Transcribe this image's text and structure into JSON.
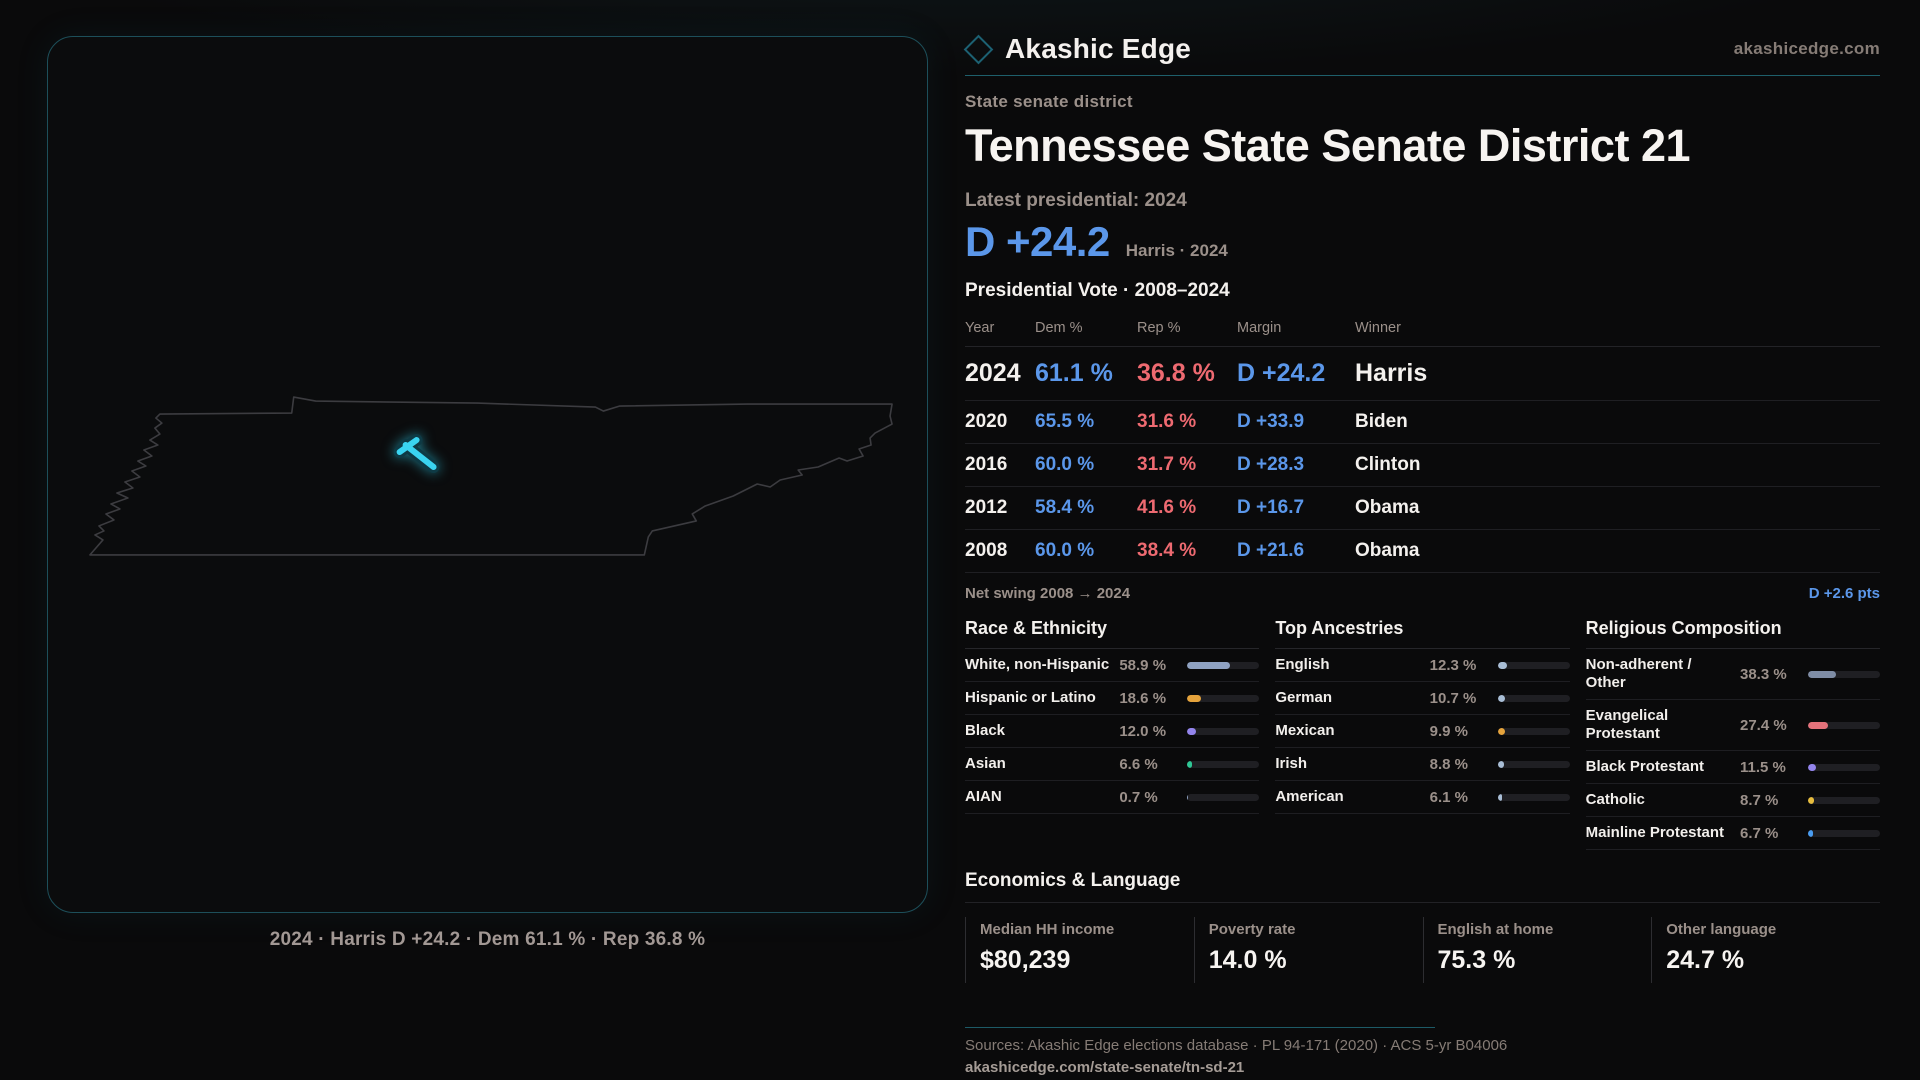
{
  "brand": {
    "name": "Akashic Edge",
    "site": "akashicedge.com"
  },
  "page": {
    "kicker": "State senate district",
    "title": "Tennessee State Senate District 21"
  },
  "headline": {
    "label": "Latest presidential: 2024",
    "margin": "D +24.2",
    "sub": "Harris · 2024"
  },
  "map": {
    "caption": "2024 · Harris D +24.2 · Dem 61.1 % · Rep 36.8 %"
  },
  "vote_table": {
    "title": "Presidential Vote · 2008–2024",
    "columns": [
      "Year",
      "Dem %",
      "Rep %",
      "Margin",
      "Winner"
    ],
    "rows": [
      {
        "year": "2024",
        "dem": "61.1 %",
        "rep": "36.8 %",
        "margin": "D +24.2",
        "winner": "Harris",
        "emphasis": true
      },
      {
        "year": "2020",
        "dem": "65.5 %",
        "rep": "31.6 %",
        "margin": "D +33.9",
        "winner": "Biden",
        "emphasis": false
      },
      {
        "year": "2016",
        "dem": "60.0 %",
        "rep": "31.7 %",
        "margin": "D +28.3",
        "winner": "Clinton",
        "emphasis": false
      },
      {
        "year": "2012",
        "dem": "58.4 %",
        "rep": "41.6 %",
        "margin": "D +16.7",
        "winner": "Obama",
        "emphasis": false
      },
      {
        "year": "2008",
        "dem": "60.0 %",
        "rep": "38.4 %",
        "margin": "D +21.6",
        "winner": "Obama",
        "emphasis": false
      }
    ]
  },
  "net_swing": {
    "label": "Net swing 2008 → 2024",
    "value": "D +2.6 pts"
  },
  "demographics": [
    {
      "id": "race",
      "title": "Race & Ethnicity",
      "rows": [
        {
          "label": "White, non-Hispanic",
          "value": "58.9 %",
          "pct": 58.9,
          "color": "#8fa2c2"
        },
        {
          "label": "Hispanic or Latino",
          "value": "18.6 %",
          "pct": 18.6,
          "color": "#e5a33c"
        },
        {
          "label": "Black",
          "value": "12.0 %",
          "pct": 12.0,
          "color": "#9384ec"
        },
        {
          "label": "Asian",
          "value": "6.6 %",
          "pct": 6.6,
          "color": "#2fc795"
        },
        {
          "label": "AIAN",
          "value": "0.7 %",
          "pct": 0.7,
          "color": "#8fa2c2"
        }
      ]
    },
    {
      "id": "ancestries",
      "title": "Top Ancestries",
      "rows": [
        {
          "label": "English",
          "value": "12.3 %",
          "pct": 12.3,
          "color": "#a9bed6"
        },
        {
          "label": "German",
          "value": "10.7 %",
          "pct": 10.7,
          "color": "#a9bed6"
        },
        {
          "label": "Mexican",
          "value": "9.9 %",
          "pct": 9.9,
          "color": "#e5a33c"
        },
        {
          "label": "Irish",
          "value": "8.8 %",
          "pct": 8.8,
          "color": "#a9bed6"
        },
        {
          "label": "American",
          "value": "6.1 %",
          "pct": 6.1,
          "color": "#a9bed6"
        }
      ]
    },
    {
      "id": "religion",
      "title": "Religious Composition",
      "rows": [
        {
          "label": "Non-adherent / Other",
          "value": "38.3 %",
          "pct": 38.3,
          "color": "#7f8da6"
        },
        {
          "label": "Evangelical Protestant",
          "value": "27.4 %",
          "pct": 27.4,
          "color": "#e4727b"
        },
        {
          "label": "Black Protestant",
          "value": "11.5 %",
          "pct": 11.5,
          "color": "#9384ec"
        },
        {
          "label": "Catholic",
          "value": "8.7 %",
          "pct": 8.7,
          "color": "#e7bd3e"
        },
        {
          "label": "Mainline Protestant",
          "value": "6.7 %",
          "pct": 6.7,
          "color": "#4a9cf0"
        }
      ]
    }
  ],
  "economics": {
    "title": "Economics & Language",
    "stats": [
      {
        "label": "Median HH income",
        "value": "$80,239"
      },
      {
        "label": "Poverty rate",
        "value": "14.0 %"
      },
      {
        "label": "English at home",
        "value": "75.3 %"
      },
      {
        "label": "Other language",
        "value": "24.7 %"
      }
    ]
  },
  "footer": {
    "sources": "Sources: Akashic Edge elections database · PL 94-171 (2020) · ACS 5-yr B04006",
    "permalink": "akashicedge.com/state-senate/tn-sd-21"
  },
  "colors": {
    "dem": "#5b97ea",
    "rep": "#ee6a71",
    "district": "#3ad4f1",
    "accent_teal": "#1e5f6b"
  }
}
